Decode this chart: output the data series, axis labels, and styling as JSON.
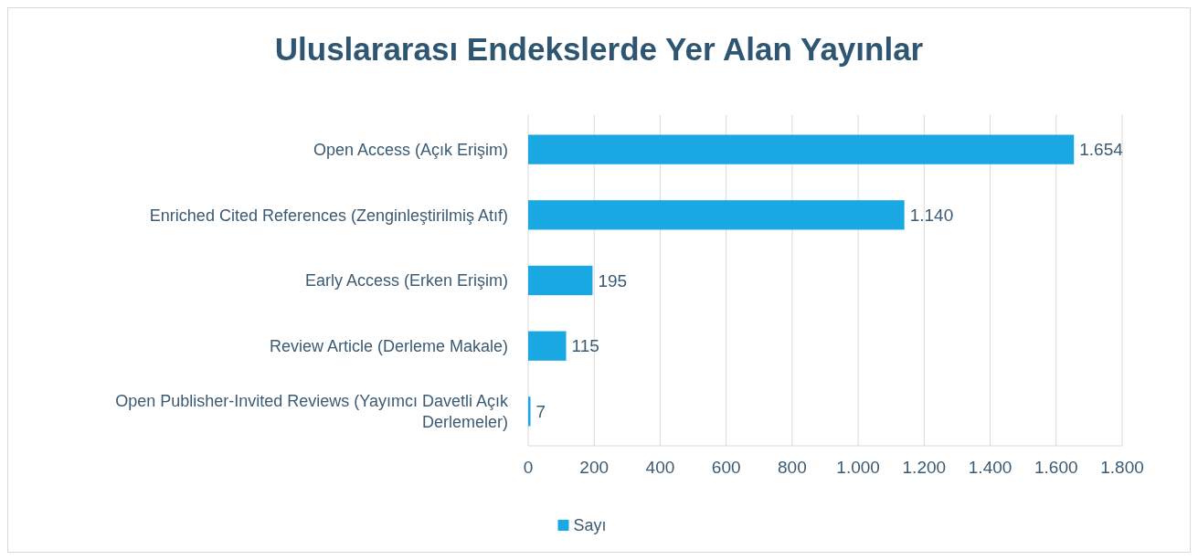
{
  "chart_data": {
    "type": "bar",
    "orientation": "horizontal",
    "title": "Uluslararası Endekslerde Yer Alan Yayınlar",
    "categories": [
      "Open Access (Açık Erişim)",
      "Enriched Cited References (Zenginleştirilmiş Atıf)",
      "Early Access (Erken Erişim)",
      "Review Article (Derleme Makale)",
      "Open Publisher-Invited Reviews (Yayımcı Davetli Açık Derlemeler)"
    ],
    "series": [
      {
        "name": "Sayı",
        "color": "#1aa8e2",
        "values": [
          1654,
          1140,
          195,
          115,
          7
        ],
        "value_labels": [
          "1.654",
          "1.140",
          "195",
          "115",
          "7"
        ]
      }
    ],
    "xlim": [
      0,
      1800
    ],
    "xticks": [
      0,
      200,
      400,
      600,
      800,
      {
        "value": 1000,
        "label": "1.000"
      },
      {
        "value": 1200,
        "label": "1.200"
      },
      {
        "value": 1400,
        "label": "1.400"
      },
      {
        "value": 1600,
        "label": "1.600"
      },
      {
        "value": 1800,
        "label": "1.800"
      }
    ],
    "grid": "x",
    "legend": "bottom"
  }
}
